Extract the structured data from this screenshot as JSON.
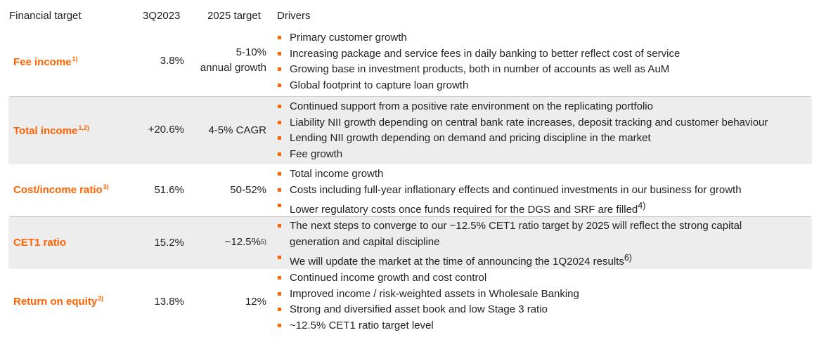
{
  "header": {
    "col_target": "Financial target",
    "col_current": "3Q2023",
    "col_2025": "2025 target",
    "col_drivers": "Drivers"
  },
  "rows": [
    {
      "label": "Fee income",
      "label_sup": "1)",
      "current": "3.8%",
      "target_line1": "5-10%",
      "target_line2": "annual growth",
      "target_sup": "",
      "drivers": [
        {
          "text": "Primary customer growth",
          "sup": ""
        },
        {
          "text": "Increasing package and service fees in daily banking to better reflect cost of service",
          "sup": ""
        },
        {
          "text": "Growing base in investment products, both in number of accounts as well as AuM",
          "sup": ""
        },
        {
          "text": "Global footprint to capture loan growth",
          "sup": ""
        }
      ]
    },
    {
      "label": "Total income",
      "label_sup": "1,2)",
      "current": "+20.6%",
      "target_line1": "4-5% CAGR",
      "target_line2": "",
      "target_sup": "",
      "drivers": [
        {
          "text": "Continued support from a positive rate environment on the replicating portfolio",
          "sup": ""
        },
        {
          "text": "Liability NII growth depending on central bank rate increases, deposit tracking and customer behaviour",
          "sup": ""
        },
        {
          "text": "Lending NII growth depending on demand and pricing discipline in the market",
          "sup": ""
        },
        {
          "text": "Fee growth",
          "sup": ""
        }
      ]
    },
    {
      "label": "Cost/income ratio",
      "label_sup": "3)",
      "current": "51.6%",
      "target_line1": "50-52%",
      "target_line2": "",
      "target_sup": "",
      "drivers": [
        {
          "text": "Total income growth",
          "sup": ""
        },
        {
          "text": "Costs including full-year inflationary effects and continued investments in our business for growth",
          "sup": ""
        },
        {
          "text": "Lower regulatory costs once funds required for the DGS and SRF are filled",
          "sup": "4)"
        }
      ]
    },
    {
      "label": "CET1 ratio",
      "label_sup": "",
      "current": "15.2%",
      "target_line1": "~12.5%",
      "target_line2": "",
      "target_sup": "5)",
      "drivers": [
        {
          "text": "The next steps to converge to our ~12.5% CET1 ratio target by 2025 will reflect the strong capital",
          "cont": "generation and capital discipline",
          "sup": ""
        },
        {
          "text": "We will update the market at the time of announcing the 1Q2024 results",
          "sup": "6)"
        }
      ]
    },
    {
      "label": "Return on equity",
      "label_sup": "3)",
      "current": "13.8%",
      "target_line1": "12%",
      "target_line2": "",
      "target_sup": "",
      "drivers": [
        {
          "text": "Continued income growth and cost control",
          "sup": ""
        },
        {
          "text": "Improved income / risk-weighted assets in Wholesale Banking",
          "sup": ""
        },
        {
          "text": "Strong and diversified asset book and low Stage 3 ratio",
          "sup": ""
        },
        {
          "text": "~12.5% CET1 ratio target level",
          "sup": ""
        }
      ]
    }
  ],
  "colors": {
    "accent": "#ff6200",
    "shade": "#ededed",
    "text": "#222222"
  }
}
